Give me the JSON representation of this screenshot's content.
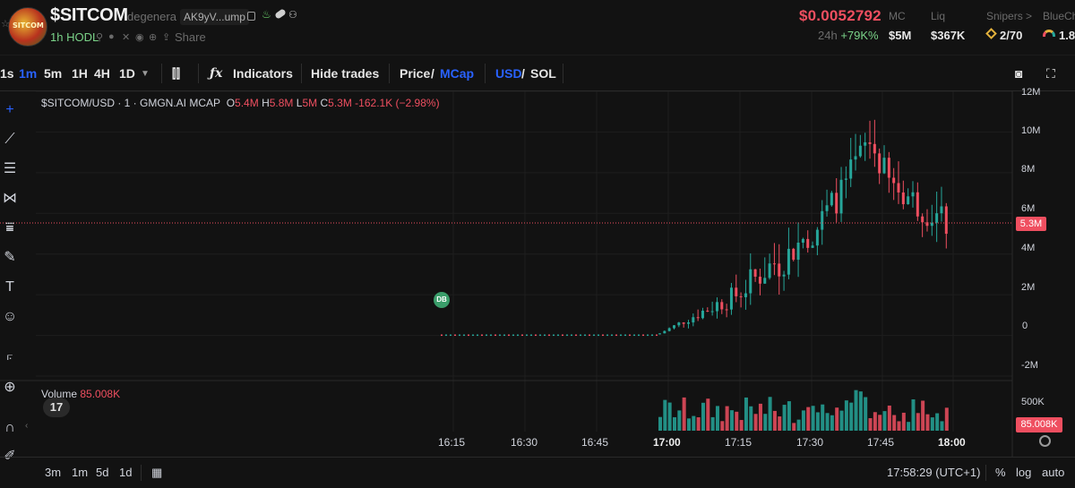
{
  "header": {
    "title": "$SITCOM",
    "subname": "degenera",
    "address": "AK9yV...ump",
    "logo_text": "SITCOM",
    "hodl": "1h HODL",
    "share": "Share",
    "price": "$0.0052792",
    "change_prefix": "24h",
    "change_value": "+79K%",
    "stats": [
      {
        "label": "MC",
        "value": "$5M"
      },
      {
        "label": "Liq",
        "value": "$367K"
      },
      {
        "label": "Snipers >",
        "value": "2/70"
      },
      {
        "label": "BlueCh",
        "value": "1.8"
      }
    ],
    "colors": {
      "down": "#ef4f60",
      "up": "#26a69a",
      "accent": "#2962ff",
      "hodl": "#7bd389"
    }
  },
  "toolbar": {
    "intervals": [
      "1s",
      "1m",
      "5m",
      "1H",
      "4H",
      "1D"
    ],
    "active_interval": "1m",
    "indicators": "Indicators",
    "hide_trades": "Hide trades",
    "price": "Price",
    "mcap": "MCap",
    "usd": "USD",
    "sol": "SOL",
    "slash": "/"
  },
  "left_tools": [
    "crosshair-icon",
    "trendline-icon",
    "fib-icon",
    "pattern-icon",
    "projection-icon",
    "brush-icon",
    "text-icon",
    "emoji-icon",
    "ruler-icon",
    "zoom-icon",
    "magnet-icon",
    "lock-edit-icon"
  ],
  "legend": {
    "symbol": "$SITCOM/USD · 1 · GMGN.AI MCAP",
    "o_label": "O",
    "o": "5.4M",
    "h_label": "H",
    "h": "5.8M",
    "l_label": "L",
    "l": "5M",
    "c_label": "C",
    "c": "5.3M",
    "change": "-162.1K (−2.98%)"
  },
  "volume_legend": {
    "label": "Volume",
    "value": "85.008K"
  },
  "db_badge": "DB",
  "tv_logo": "17",
  "current_tag": "5.3M",
  "volume_tag": "85.008K",
  "volume_axis_label": "500K",
  "chart_data": {
    "type": "candlestick",
    "title": "$SITCOM/USD · 1 · GMGN.AI MCAP",
    "y_ticks": [
      "12M",
      "10M",
      "8M",
      "6M",
      "4M",
      "2M",
      "0",
      "-2M"
    ],
    "x_ticks": [
      "16:15",
      "16:30",
      "16:45",
      "17:00",
      "17:15",
      "17:30",
      "17:45",
      "18:00"
    ],
    "ylim": [
      -2000000,
      12000000
    ],
    "last_close": 5300000,
    "candles_note": "flat near 0 from 16:15 to 17:00 then rising to ~11M at 17:37 and settling near 5.3M",
    "grid": true
  },
  "bottombar": {
    "ranges": [
      "3m",
      "1m",
      "5d",
      "1d"
    ],
    "time": "17:58:29 (UTC+1)",
    "percent": "%",
    "log": "log",
    "auto": "auto"
  }
}
